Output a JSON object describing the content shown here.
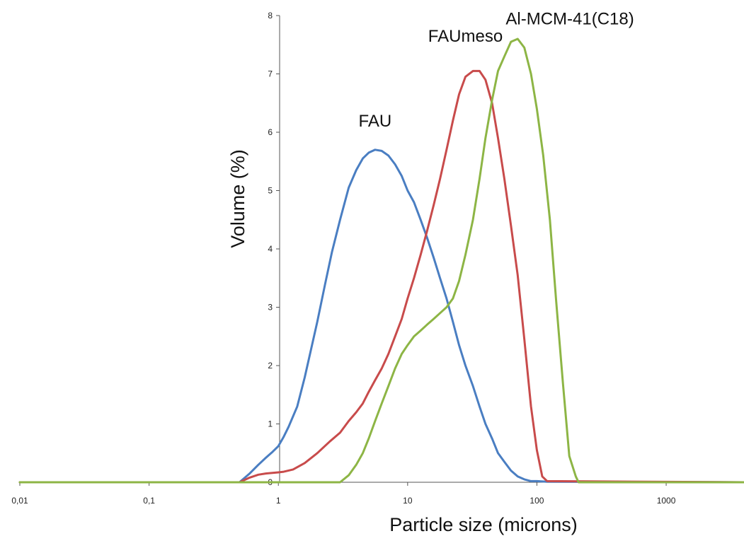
{
  "chart_data": {
    "type": "line",
    "title": "",
    "xlabel": "Particle size (microns)",
    "ylabel": "Volume (%)",
    "xscale": "log",
    "xlim": [
      0.01,
      4000
    ],
    "ylim": [
      0,
      8
    ],
    "x_ticks": [
      {
        "value": 0.01,
        "label": "0,01"
      },
      {
        "value": 0.1,
        "label": "0,1"
      },
      {
        "value": 1,
        "label": "1"
      },
      {
        "value": 10,
        "label": "10"
      },
      {
        "value": 100,
        "label": "100"
      },
      {
        "value": 1000,
        "label": "1000"
      }
    ],
    "y_ticks": [
      {
        "value": 0,
        "label": "0"
      },
      {
        "value": 1,
        "label": "1"
      },
      {
        "value": 2,
        "label": "2"
      },
      {
        "value": 3,
        "label": "3"
      },
      {
        "value": 4,
        "label": "4"
      },
      {
        "value": 5,
        "label": "5"
      },
      {
        "value": 6,
        "label": "6"
      },
      {
        "value": 7,
        "label": "7"
      },
      {
        "value": 8,
        "label": "8"
      }
    ],
    "grid": false,
    "legend": "none",
    "series": [
      {
        "name": "FAU",
        "color": "#4a7ec2",
        "points": [
          [
            0.01,
            0
          ],
          [
            0.5,
            0
          ],
          [
            0.6,
            0.15
          ],
          [
            0.7,
            0.3
          ],
          [
            0.8,
            0.42
          ],
          [
            0.9,
            0.52
          ],
          [
            1.0,
            0.62
          ],
          [
            1.1,
            0.78
          ],
          [
            1.2,
            0.95
          ],
          [
            1.4,
            1.3
          ],
          [
            1.6,
            1.8
          ],
          [
            1.8,
            2.3
          ],
          [
            2.0,
            2.75
          ],
          [
            2.3,
            3.4
          ],
          [
            2.6,
            3.95
          ],
          [
            3.0,
            4.5
          ],
          [
            3.5,
            5.05
          ],
          [
            4.0,
            5.35
          ],
          [
            4.5,
            5.55
          ],
          [
            5.0,
            5.65
          ],
          [
            5.6,
            5.7
          ],
          [
            6.3,
            5.68
          ],
          [
            7.1,
            5.6
          ],
          [
            8.0,
            5.45
          ],
          [
            9.0,
            5.25
          ],
          [
            10,
            5.0
          ],
          [
            11.2,
            4.8
          ],
          [
            12.6,
            4.5
          ],
          [
            14.1,
            4.2
          ],
          [
            15.9,
            3.85
          ],
          [
            17.8,
            3.5
          ],
          [
            20,
            3.15
          ],
          [
            22.4,
            2.75
          ],
          [
            25,
            2.35
          ],
          [
            28,
            2.0
          ],
          [
            32,
            1.65
          ],
          [
            36,
            1.3
          ],
          [
            40,
            1.0
          ],
          [
            45,
            0.75
          ],
          [
            50,
            0.5
          ],
          [
            56,
            0.35
          ],
          [
            63,
            0.2
          ],
          [
            71,
            0.1
          ],
          [
            80,
            0.05
          ],
          [
            90,
            0.02
          ],
          [
            100,
            0.02
          ],
          [
            120,
            0.01
          ],
          [
            4000,
            0
          ]
        ]
      },
      {
        "name": "FAUmeso",
        "color": "#c84b4b",
        "points": [
          [
            0.01,
            0
          ],
          [
            0.5,
            0
          ],
          [
            0.6,
            0.08
          ],
          [
            0.7,
            0.13
          ],
          [
            0.8,
            0.15
          ],
          [
            0.9,
            0.16
          ],
          [
            1.0,
            0.17
          ],
          [
            1.1,
            0.18
          ],
          [
            1.3,
            0.22
          ],
          [
            1.6,
            0.33
          ],
          [
            2.0,
            0.5
          ],
          [
            2.5,
            0.7
          ],
          [
            3.0,
            0.85
          ],
          [
            3.5,
            1.05
          ],
          [
            4.0,
            1.2
          ],
          [
            4.5,
            1.35
          ],
          [
            5.0,
            1.55
          ],
          [
            5.6,
            1.75
          ],
          [
            6.3,
            1.95
          ],
          [
            7.1,
            2.2
          ],
          [
            8.0,
            2.5
          ],
          [
            9.0,
            2.8
          ],
          [
            10,
            3.15
          ],
          [
            11.2,
            3.5
          ],
          [
            12.6,
            3.9
          ],
          [
            14.1,
            4.3
          ],
          [
            15.9,
            4.75
          ],
          [
            17.8,
            5.2
          ],
          [
            20,
            5.7
          ],
          [
            22.4,
            6.2
          ],
          [
            25,
            6.65
          ],
          [
            28,
            6.95
          ],
          [
            32,
            7.05
          ],
          [
            36,
            7.05
          ],
          [
            40,
            6.9
          ],
          [
            45,
            6.5
          ],
          [
            50,
            5.9
          ],
          [
            56,
            5.2
          ],
          [
            63,
            4.4
          ],
          [
            71,
            3.55
          ],
          [
            80,
            2.45
          ],
          [
            90,
            1.3
          ],
          [
            100,
            0.55
          ],
          [
            110,
            0.1
          ],
          [
            120,
            0.02
          ],
          [
            4000,
            0
          ]
        ]
      },
      {
        "name": "Al-MCM-41(C18)",
        "color": "#8db545",
        "points": [
          [
            0.01,
            0
          ],
          [
            3.0,
            0
          ],
          [
            3.5,
            0.12
          ],
          [
            4.0,
            0.3
          ],
          [
            4.5,
            0.5
          ],
          [
            5.0,
            0.75
          ],
          [
            5.6,
            1.05
          ],
          [
            6.3,
            1.35
          ],
          [
            7.1,
            1.65
          ],
          [
            8.0,
            1.95
          ],
          [
            9.0,
            2.2
          ],
          [
            10,
            2.35
          ],
          [
            11.2,
            2.5
          ],
          [
            12.6,
            2.6
          ],
          [
            14.1,
            2.7
          ],
          [
            15.9,
            2.8
          ],
          [
            17.8,
            2.9
          ],
          [
            20,
            3.0
          ],
          [
            22.4,
            3.15
          ],
          [
            25,
            3.45
          ],
          [
            28,
            3.9
          ],
          [
            32,
            4.5
          ],
          [
            36,
            5.2
          ],
          [
            40,
            5.9
          ],
          [
            45,
            6.55
          ],
          [
            50,
            7.05
          ],
          [
            56,
            7.3
          ],
          [
            63,
            7.55
          ],
          [
            71,
            7.6
          ],
          [
            80,
            7.45
          ],
          [
            90,
            7.0
          ],
          [
            100,
            6.4
          ],
          [
            112,
            5.6
          ],
          [
            126,
            4.5
          ],
          [
            141,
            3.1
          ],
          [
            159,
            1.7
          ],
          [
            178,
            0.45
          ],
          [
            200,
            0.1
          ],
          [
            210,
            0
          ],
          [
            4000,
            0
          ]
        ]
      }
    ],
    "annotations": [
      {
        "text": "FAU",
        "series": "FAU",
        "x": 5.6,
        "y": 6.1
      },
      {
        "text": "FAUmeso",
        "series": "FAUmeso",
        "x": 28,
        "y": 7.55
      },
      {
        "text": "Al-MCM-41(C18)",
        "series": "Al-MCM-41(C18)",
        "x": 180,
        "y": 7.85
      }
    ]
  }
}
